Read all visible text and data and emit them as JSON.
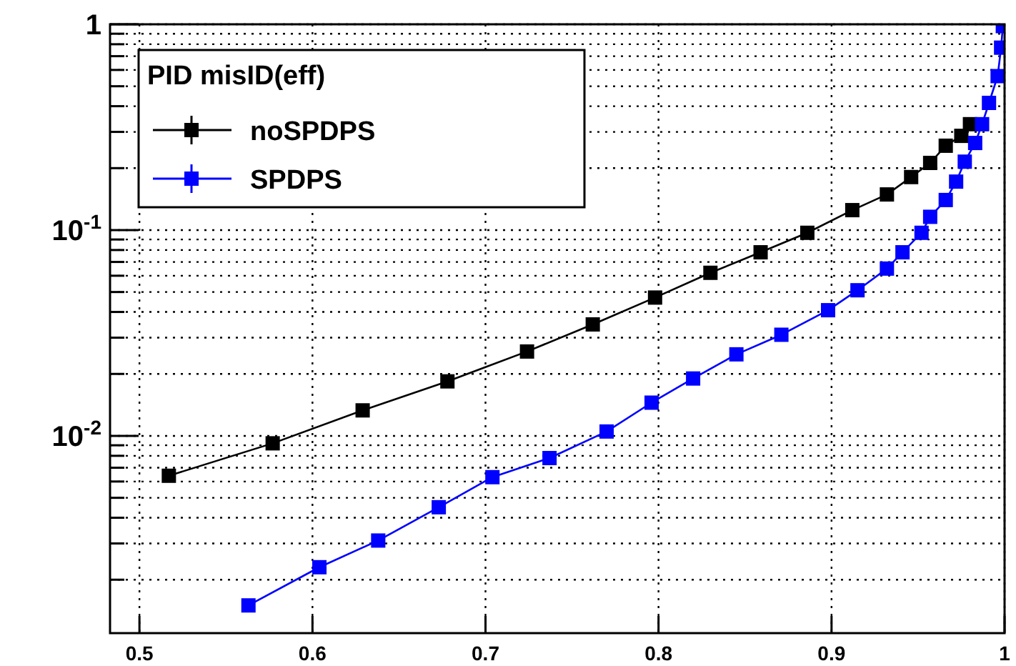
{
  "chart_data": {
    "type": "line",
    "legend_title": "PID misID(eff)",
    "legend": "top left",
    "grid": true,
    "log": "y",
    "marker": "square",
    "line_style": "solid",
    "xlim": [
      0.483,
      1.0
    ],
    "ylim": [
      0.0011,
      1
    ],
    "xticks": [
      0.5,
      0.6,
      0.7,
      0.8,
      0.9,
      {
        "value": 1,
        "label": "1"
      }
    ],
    "yticks": [
      {
        "value": 0.002,
        "label": null
      },
      {
        "value": 0.003,
        "label": null
      },
      {
        "value": 0.004,
        "label": null
      },
      {
        "value": 0.005,
        "label": null
      },
      {
        "value": 0.006,
        "label": null
      },
      {
        "value": 0.007,
        "label": null
      },
      {
        "value": 0.008,
        "label": null
      },
      {
        "value": 0.009,
        "label": null
      },
      {
        "value": 0.01,
        "label": "10$^{-2}$"
      },
      {
        "value": 0.02,
        "label": null
      },
      {
        "value": 0.03,
        "label": null
      },
      {
        "value": 0.04,
        "label": null
      },
      {
        "value": 0.05,
        "label": null
      },
      {
        "value": 0.06,
        "label": null
      },
      {
        "value": 0.07,
        "label": null
      },
      {
        "value": 0.08,
        "label": null
      },
      {
        "value": 0.09,
        "label": null
      },
      {
        "value": 0.1,
        "label": "10$^{-1}$"
      },
      {
        "value": 0.2,
        "label": null
      },
      {
        "value": 0.3,
        "label": null
      },
      {
        "value": 0.4,
        "label": null
      },
      {
        "value": 0.5,
        "label": null
      },
      {
        "value": 0.6,
        "label": null
      },
      {
        "value": 0.7,
        "label": null
      },
      {
        "value": 0.8,
        "label": null
      },
      {
        "value": 0.9,
        "label": null
      },
      1
    ],
    "series": [
      {
        "name": "noSPDPS",
        "color": "#000000",
        "x": [
          0.517,
          0.577,
          0.629,
          0.678,
          0.724,
          0.762,
          0.798,
          0.83,
          0.859,
          0.886,
          0.912,
          0.932,
          0.946,
          0.957,
          0.966,
          0.975,
          0.98
        ],
        "values": [
          0.0064,
          0.0092,
          0.0133,
          0.0184,
          0.0257,
          0.0348,
          0.047,
          0.062,
          0.078,
          0.097,
          0.125,
          0.149,
          0.181,
          0.212,
          0.257,
          0.287,
          0.327
        ]
      },
      {
        "name": "SPDPS",
        "color": "#0000ff",
        "x": [
          0.563,
          0.604,
          0.638,
          0.673,
          0.704,
          0.737,
          0.77,
          0.796,
          0.82,
          0.845,
          0.871,
          0.898,
          0.915,
          0.932,
          0.941,
          0.952,
          0.957,
          0.966,
          0.972,
          0.977,
          0.983,
          0.987,
          0.991,
          0.996,
          0.998,
          0.999
        ],
        "values": [
          0.0015,
          0.0023,
          0.0031,
          0.0045,
          0.0063,
          0.0078,
          0.0105,
          0.0145,
          0.019,
          0.0249,
          0.031,
          0.0408,
          0.051,
          0.065,
          0.078,
          0.097,
          0.116,
          0.14,
          0.172,
          0.215,
          0.265,
          0.327,
          0.415,
          0.56,
          0.77,
          0.98
        ]
      }
    ]
  }
}
